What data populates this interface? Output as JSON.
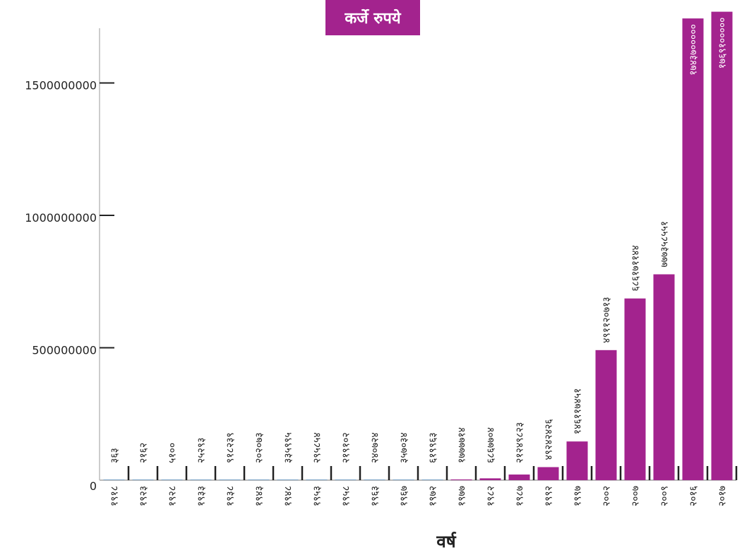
{
  "chart_data": {
    "type": "bar",
    "title": "कर्जे रुपये",
    "xlabel": "वर्ष",
    "ylabel": "",
    "ylim": [
      0,
      1700000000
    ],
    "yticks": [
      0,
      500000000,
      1000000000,
      1500000000
    ],
    "ytick_labels": [
      "0",
      "500000000",
      "1000000000",
      "1500000000"
    ],
    "categories": [
      "१९१८",
      "१९२३",
      "१९२८",
      "१९३३",
      "१९३८",
      "१९४३",
      "१९४८",
      "१९५३",
      "१९५८",
      "१९६३",
      "१९६७",
      "१९७२",
      "१९७७",
      "१९८२",
      "१९८७",
      "१९९२",
      "१९९७",
      "२००२",
      "२००७",
      "२००९",
      "२०१६",
      "२०१७"
    ],
    "values": [
      363,
      2162,
      5100,
      25293,
      918239,
      202073,
      335995,
      295854,
      219102,
      240724,
      357034,
      619963,
      1777714,
      6867704,
      21249823,
      49242426,
      146117451,
      491120713,
      686171144,
      777358551,
      1743700000,
      1769100000
    ],
    "value_labels": [
      "३६३",
      "२१६२",
      "५१००",
      "२५२९३",
      "९१८२३९",
      "२०२०७३",
      "३३५९९५",
      "२९५८५४",
      "२१९१०२",
      "२४०७२४",
      "३५७०३४",
      "६१९९६३",
      "१७७७७१४",
      "६८६७७०४",
      "२१२४९८२३",
      "४९२४२४२६",
      "१४६११७४५१",
      "४९११२०७१३",
      "६८६१७११४४",
      "७७७३५८५५१",
      "१७४३७०००००",
      "१७६९१०००००"
    ],
    "colors": {
      "bar": "#a3238e",
      "small_bar": "#7fa7c9",
      "axis": "#bbbbbb",
      "tick": "#222222"
    },
    "grid": false,
    "legend": "none"
  }
}
